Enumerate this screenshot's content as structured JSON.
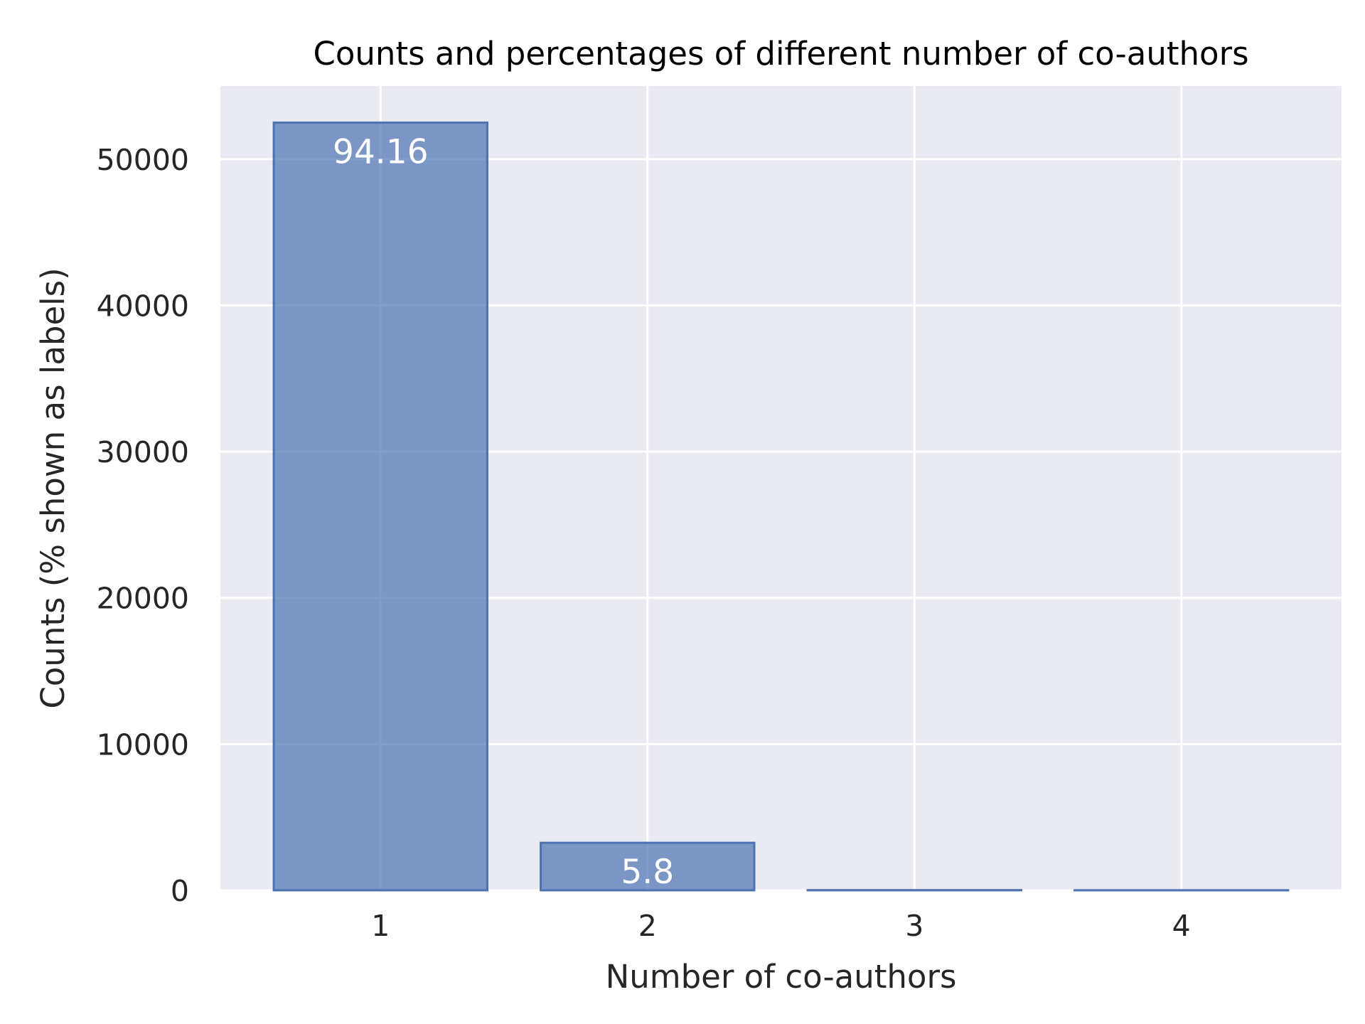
{
  "chart_data": {
    "type": "bar",
    "title": "Counts and percentages of different number of co-authors",
    "xlabel": "Number of co-authors",
    "ylabel": "Counts (% shown as labels)",
    "categories": [
      "1",
      "2",
      "3",
      "4"
    ],
    "values": [
      52500,
      3250,
      15,
      5
    ],
    "bar_labels": [
      "94.16",
      "5.8",
      "",
      ""
    ],
    "ylim": [
      0,
      55000
    ],
    "yticks": [
      0,
      10000,
      20000,
      30000,
      40000,
      50000
    ],
    "ytick_labels": [
      "0",
      "10000",
      "20000",
      "30000",
      "40000",
      "50000"
    ],
    "grid": true,
    "colors": {
      "plot_background": "#EAEAF2",
      "grid": "#FFFFFF",
      "bar_fill": "#4C72B0",
      "bar_edge": "#4C72B0",
      "bar_label": "#FFFFFF",
      "text": "#262626"
    }
  }
}
